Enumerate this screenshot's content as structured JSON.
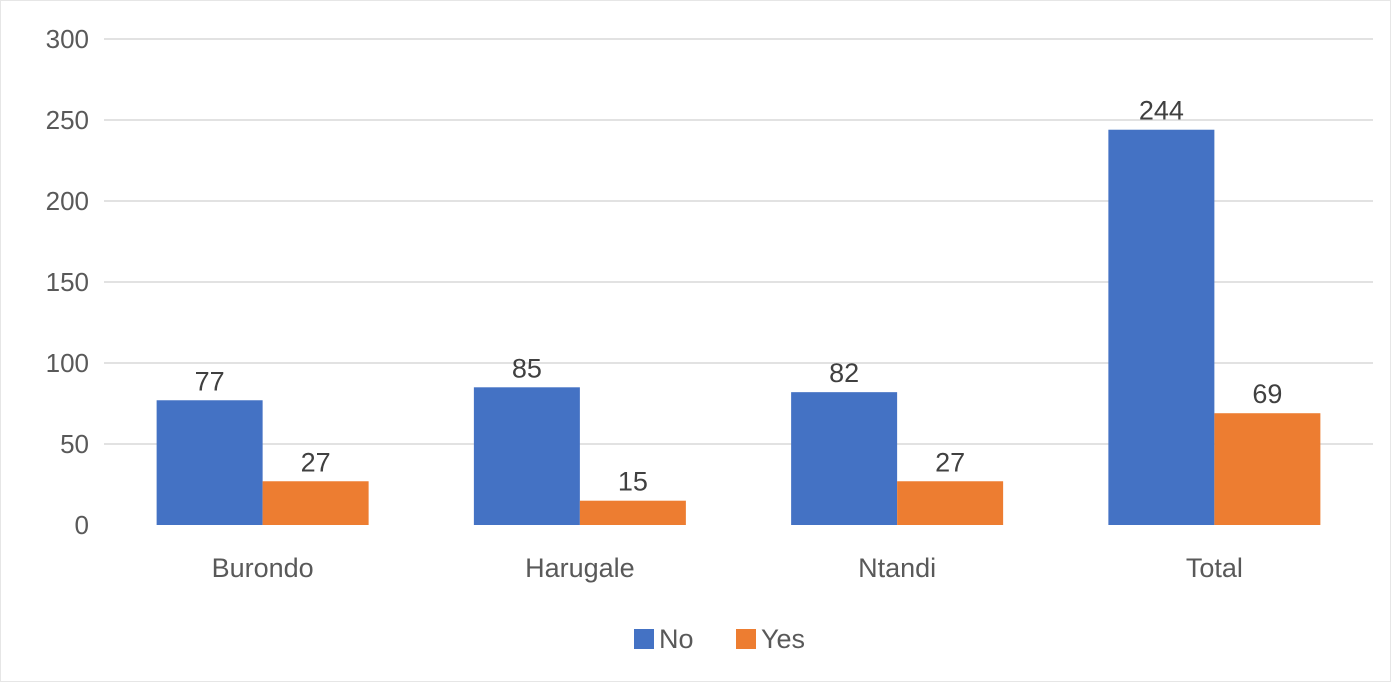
{
  "chart_data": {
    "type": "bar",
    "categories": [
      "Burondo",
      "Harugale",
      "Ntandi",
      "Total"
    ],
    "series": [
      {
        "name": "No",
        "values": [
          77,
          85,
          82,
          244
        ],
        "color": "#4472C4"
      },
      {
        "name": "Yes",
        "values": [
          27,
          15,
          27,
          69
        ],
        "color": "#ED7D31"
      }
    ],
    "title": "",
    "xlabel": "",
    "ylabel": "",
    "ylim": [
      0,
      300
    ],
    "yticks": [
      0,
      50,
      100,
      150,
      200,
      250,
      300
    ],
    "grid": true,
    "legend_position": "bottom"
  }
}
